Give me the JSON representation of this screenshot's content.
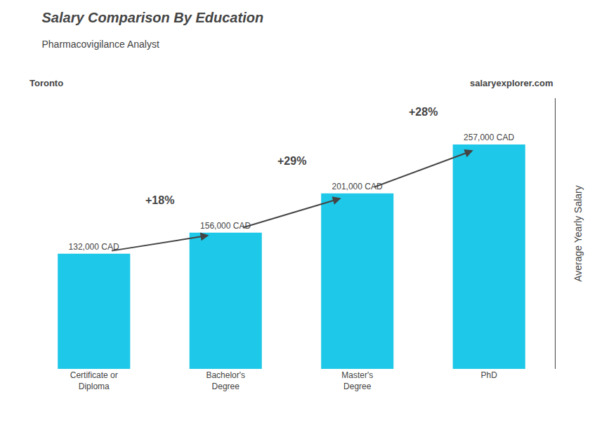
{
  "chart_data": {
    "type": "bar",
    "title": "Salary Comparison By Education",
    "subtitle": "Pharmacovigilance Analyst",
    "categories": [
      "Certificate or\nDiploma",
      "Bachelor's\nDegree",
      "Master's\nDegree",
      "PhD"
    ],
    "values": [
      132000,
      156000,
      201000,
      257000
    ],
    "value_labels": [
      "132,000 CAD",
      "156,000 CAD",
      "201,000 CAD",
      "257,000 CAD"
    ],
    "data_labels": true,
    "color": "#1ec8e8",
    "ylabel": "Average Yearly Salary",
    "ylim": [
      0,
      310000
    ],
    "yticks": [],
    "tick_labels": "x",
    "grid": false,
    "annotations": [
      {
        "text": "Toronto"
      },
      {
        "text": "salaryexplorer.com"
      },
      {
        "text": "+18%",
        "from": "Certificate or\nDiploma",
        "to": "Bachelor's\nDegree"
      },
      {
        "text": "+29%",
        "from": "Bachelor's\nDegree",
        "to": "Master's\nDegree"
      },
      {
        "text": "+28%",
        "from": "Master's\nDegree",
        "to": "PhD"
      }
    ]
  }
}
